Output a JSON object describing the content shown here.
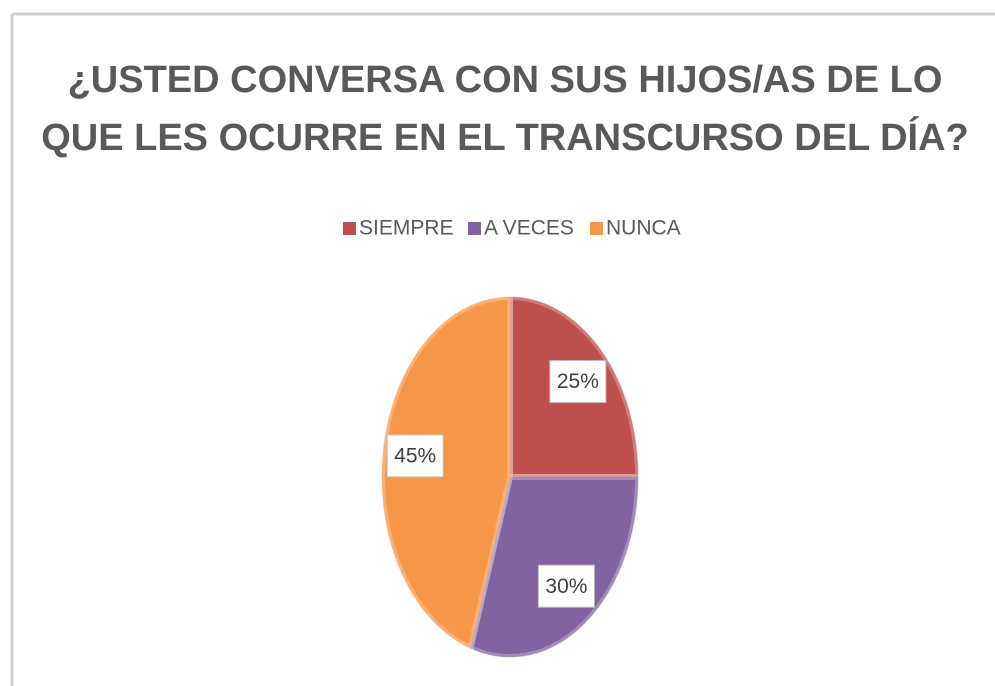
{
  "chart_data": {
    "type": "pie",
    "title": [
      "¿USTED CONVERSA CON SUS HIJOS/AS DE LO",
      "QUE LES OCURRE EN EL TRANSCURSO DEL DÍA?"
    ],
    "categories": [
      "SIEMPRE",
      "A VECES",
      "NUNCA"
    ],
    "values": [
      25,
      30,
      45
    ],
    "value_labels": [
      "25%",
      "30%",
      "45%"
    ],
    "colors": [
      "#c0504d",
      "#8064a2",
      "#f79646"
    ],
    "legend": "top"
  }
}
